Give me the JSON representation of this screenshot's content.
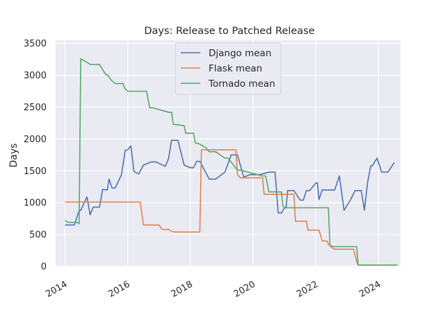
{
  "chart_data": {
    "type": "line",
    "title": "Days: Release to Patched Release",
    "xlabel": "",
    "ylabel": "Days",
    "xlim": [
      2013.7,
      2024.7
    ],
    "ylim": [
      0,
      3550
    ],
    "x_ticks": [
      2014,
      2016,
      2018,
      2020,
      2022,
      2024
    ],
    "x_tick_labels": [
      "2014",
      "2016",
      "2018",
      "2020",
      "2022",
      "2024"
    ],
    "y_ticks": [
      0,
      500,
      1000,
      1500,
      2000,
      2500,
      3000,
      3500
    ],
    "y_tick_labels": [
      "0",
      "500",
      "1000",
      "1500",
      "2000",
      "2500",
      "3000",
      "3500"
    ],
    "grid": true,
    "legend_position": "upper-center",
    "background": "#eaeaf2",
    "series": [
      {
        "name": "Django mean",
        "color": "#4c72b0",
        "x": [
          2014.0,
          2014.3,
          2014.45,
          2014.5,
          2014.7,
          2014.8,
          2014.9,
          2015.1,
          2015.2,
          2015.35,
          2015.4,
          2015.5,
          2015.6,
          2015.8,
          2015.92,
          2016.0,
          2016.1,
          2016.2,
          2016.35,
          2016.5,
          2016.75,
          2016.85,
          2016.9,
          2017.2,
          2017.3,
          2017.4,
          2017.6,
          2017.8,
          2018.0,
          2018.1,
          2018.2,
          2018.3,
          2018.6,
          2018.8,
          2019.1,
          2019.3,
          2019.5,
          2019.7,
          2019.9,
          2020.2,
          2020.5,
          2020.7,
          2020.8,
          2020.9,
          2021.0,
          2021.05,
          2021.1,
          2021.2,
          2021.3,
          2021.5,
          2021.6,
          2021.7,
          2021.8,
          2022.0,
          2022.05,
          2022.1,
          2022.2,
          2022.4,
          2022.6,
          2022.75,
          2022.9,
          2023.1,
          2023.25,
          2023.35,
          2023.45,
          2023.55,
          2023.65,
          2023.75,
          2023.8,
          2023.95,
          2024.1,
          2024.3,
          2024.5
        ],
        "y": [
          650,
          650,
          880,
          880,
          1090,
          810,
          930,
          930,
          1210,
          1200,
          1370,
          1230,
          1230,
          1440,
          1820,
          1830,
          1890,
          1490,
          1450,
          1590,
          1640,
          1640,
          1640,
          1570,
          1690,
          1980,
          1980,
          1590,
          1550,
          1550,
          1650,
          1650,
          1370,
          1370,
          1480,
          1750,
          1750,
          1400,
          1440,
          1440,
          1480,
          1480,
          840,
          840,
          920,
          920,
          1190,
          1190,
          1190,
          1040,
          1040,
          1190,
          1190,
          1310,
          1310,
          1050,
          1200,
          1200,
          1200,
          1420,
          880,
          1040,
          1190,
          1190,
          1190,
          880,
          1320,
          1580,
          1580,
          1700,
          1480,
          1480,
          1630
        ],
        "note": ""
      },
      {
        "name": "Flask mean",
        "color": "#dd8452",
        "x": [
          2014.0,
          2016.4,
          2016.5,
          2017.0,
          2017.1,
          2017.3,
          2017.4,
          2017.5,
          2018.3,
          2018.35,
          2019.45,
          2019.5,
          2019.6,
          2020.3,
          2020.35,
          2021.3,
          2021.35,
          2021.7,
          2021.75,
          2022.1,
          2022.2,
          2022.35,
          2022.4,
          2022.5,
          2022.6,
          2022.7,
          2023.2,
          2023.3,
          2023.35,
          2024.6
        ],
        "y": [
          1010,
          1010,
          650,
          650,
          580,
          580,
          550,
          540,
          540,
          1830,
          1830,
          1440,
          1390,
          1390,
          1130,
          1130,
          710,
          710,
          570,
          570,
          400,
          400,
          350,
          300,
          270,
          270,
          270,
          80,
          20,
          20
        ],
        "note": ""
      },
      {
        "name": "Tornado mean",
        "color": "#55a868",
        "x": [
          2014.0,
          2014.1,
          2014.4,
          2014.45,
          2014.5,
          2014.6,
          2014.75,
          2014.8,
          2015.0,
          2015.1,
          2015.3,
          2015.35,
          2015.5,
          2015.6,
          2015.85,
          2015.9,
          2016.0,
          2016.6,
          2016.7,
          2016.8,
          2017.3,
          2017.4,
          2017.45,
          2017.8,
          2017.85,
          2018.1,
          2018.15,
          2018.3,
          2018.5,
          2018.6,
          2018.8,
          2019.1,
          2019.2,
          2019.5,
          2019.6,
          2020.3,
          2020.4,
          2020.5,
          2020.9,
          2020.95,
          2021.0,
          2022.4,
          2022.45,
          2022.55,
          2023.2,
          2023.3,
          2023.35,
          2024.6
        ],
        "y": [
          720,
          690,
          690,
          670,
          3260,
          3230,
          3190,
          3170,
          3170,
          3170,
          3010,
          3010,
          2910,
          2870,
          2870,
          2800,
          2750,
          2750,
          2490,
          2490,
          2420,
          2420,
          2230,
          2210,
          2090,
          2090,
          1940,
          1920,
          1860,
          1800,
          1800,
          1700,
          1700,
          1510,
          1510,
          1420,
          1420,
          1170,
          1170,
          950,
          920,
          920,
          330,
          310,
          310,
          310,
          20,
          20
        ],
        "note": ""
      }
    ]
  }
}
